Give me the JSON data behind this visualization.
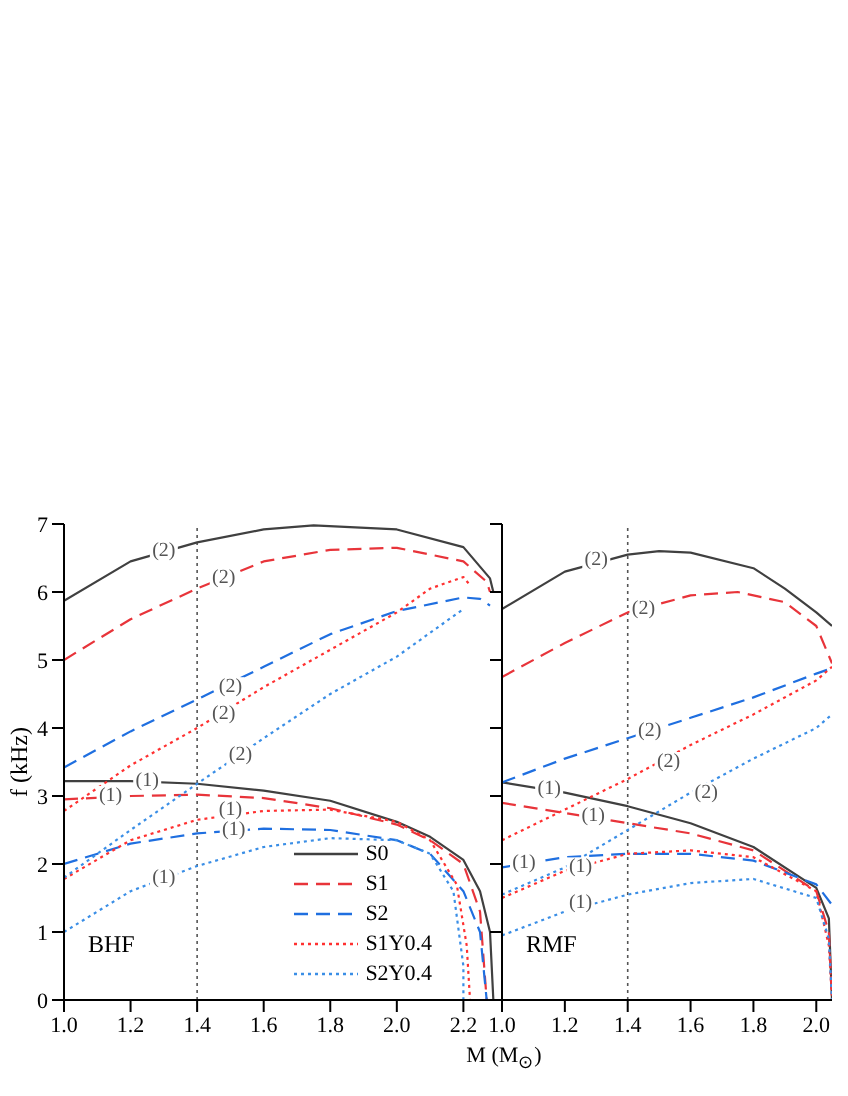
{
  "chart_data": [
    {
      "type": "line",
      "ylabel": "f (kHz)",
      "xlabel": "M (M$_{⊙}$)",
      "xlim": [
        1.0,
        2.31
      ],
      "xticks": [
        {
          "value": 1,
          "label": "1.0"
        },
        {
          "value": 1.2,
          "label": "1.2"
        },
        {
          "value": 1.4,
          "label": "1.4"
        },
        {
          "value": 1.6,
          "label": "1.6"
        },
        {
          "value": 1.8,
          "label": "1.8"
        },
        {
          "value": 2,
          "label": "2.0"
        },
        {
          "value": 2.2,
          "label": "2.2"
        }
      ],
      "ylim": [
        0,
        7
      ],
      "yticks": [
        0,
        1,
        2,
        3,
        4,
        5,
        6,
        7
      ],
      "grid": false,
      "legend": "bottom right",
      "marker": "none",
      "ref_lines": [
        {
          "axis": "x",
          "value": 1.4,
          "line_style": "dotted",
          "color": "#555555"
        }
      ],
      "annotations": [
        "BHF",
        {
          "text": "(2)",
          "x": 1.3,
          "y": 6.6
        },
        {
          "text": "(2)",
          "x": 1.48,
          "y": 6.2
        },
        {
          "text": "(2)",
          "x": 1.5,
          "y": 4.6
        },
        {
          "text": "(2)",
          "x": 1.48,
          "y": 4.2
        },
        {
          "text": "(2)",
          "x": 1.53,
          "y": 3.6
        },
        {
          "text": "(1)",
          "x": 1.25,
          "y": 3.22
        },
        {
          "text": "(1)",
          "x": 1.14,
          "y": 3.0
        },
        {
          "text": "(1)",
          "x": 1.5,
          "y": 2.8
        },
        {
          "text": "(1)",
          "x": 1.51,
          "y": 2.5
        },
        {
          "text": "(1)",
          "x": 1.3,
          "y": 1.8
        }
      ],
      "series": [
        {
          "name": "S0",
          "color": "#404040",
          "line_style": "solid",
          "x": [
            1.0,
            1.2,
            1.4,
            1.6,
            1.8,
            2.0,
            2.1,
            2.2,
            2.25,
            2.28,
            2.29
          ],
          "values": [
            3.22,
            3.22,
            3.18,
            3.08,
            2.93,
            2.62,
            2.4,
            2.06,
            1.6,
            1.0,
            0
          ]
        },
        {
          "name": "S1",
          "color": "#e8343a",
          "line_style": "dashed",
          "x": [
            1.0,
            1.2,
            1.4,
            1.6,
            1.8,
            2.0,
            2.1,
            2.2,
            2.25,
            2.27
          ],
          "values": [
            2.95,
            3.0,
            3.02,
            2.97,
            2.82,
            2.58,
            2.35,
            2.0,
            1.3,
            0
          ]
        },
        {
          "name": "S2",
          "color": "#1f6fe0",
          "line_style": "dashed",
          "x": [
            1.0,
            1.2,
            1.4,
            1.6,
            1.8,
            2.0,
            2.1,
            2.2,
            2.25,
            2.27
          ],
          "values": [
            2.0,
            2.3,
            2.45,
            2.52,
            2.5,
            2.35,
            2.15,
            1.6,
            1.0,
            0
          ]
        },
        {
          "name": "S1Y0.4",
          "color": "#ff3030",
          "line_style": "dotted",
          "x": [
            1.0,
            1.2,
            1.4,
            1.6,
            1.8,
            2.0,
            2.1,
            2.18,
            2.21,
            2.22
          ],
          "values": [
            1.78,
            2.35,
            2.65,
            2.78,
            2.8,
            2.62,
            2.35,
            1.7,
            0.8,
            0
          ]
        },
        {
          "name": "S2Y0.4",
          "color": "#3a8ee6",
          "line_style": "dotted",
          "x": [
            1.0,
            1.2,
            1.4,
            1.6,
            1.8,
            2.0,
            2.1,
            2.17,
            2.2,
            2.2
          ],
          "values": [
            1.0,
            1.6,
            1.97,
            2.25,
            2.38,
            2.35,
            2.15,
            1.6,
            0.5,
            0
          ]
        },
        {
          "color": "#404040",
          "line_style": "solid",
          "x": [
            1.0,
            1.2,
            1.4,
            1.6,
            1.75,
            2.0,
            2.2,
            2.28,
            2.29
          ],
          "values": [
            5.87,
            6.45,
            6.73,
            6.92,
            6.98,
            6.92,
            6.66,
            6.2,
            6.0
          ]
        },
        {
          "color": "#e8343a",
          "line_style": "dashed",
          "x": [
            1.0,
            1.2,
            1.4,
            1.6,
            1.8,
            2.0,
            2.2,
            2.27,
            2.28
          ],
          "values": [
            5.0,
            5.6,
            6.05,
            6.45,
            6.62,
            6.65,
            6.45,
            6.15,
            6.0
          ]
        },
        {
          "color": "#1f6fe0",
          "line_style": "dashed",
          "x": [
            1.0,
            1.2,
            1.4,
            1.6,
            1.8,
            2.0,
            2.2,
            2.25,
            2.28
          ],
          "values": [
            3.42,
            3.95,
            4.42,
            4.9,
            5.38,
            5.72,
            5.92,
            5.9,
            5.8
          ]
        },
        {
          "color": "#ff3030",
          "line_style": "dotted",
          "x": [
            1.0,
            1.2,
            1.4,
            1.6,
            1.8,
            2.0,
            2.1,
            2.2,
            2.22
          ],
          "values": [
            2.78,
            3.45,
            4.0,
            4.6,
            5.15,
            5.7,
            6.05,
            6.22,
            6.1
          ]
        },
        {
          "color": "#3a8ee6",
          "line_style": "dotted",
          "x": [
            1.0,
            1.2,
            1.4,
            1.6,
            1.8,
            2.0,
            2.2
          ],
          "values": [
            1.8,
            2.5,
            3.18,
            3.85,
            4.5,
            5.05,
            5.75
          ]
        }
      ]
    },
    {
      "type": "line",
      "xlim": [
        1.0,
        2.05
      ],
      "xticks": [
        {
          "value": 1,
          "label": "1.0"
        },
        {
          "value": 1.2,
          "label": "1.2"
        },
        {
          "value": 1.4,
          "label": "1.4"
        },
        {
          "value": 1.6,
          "label": "1.6"
        },
        {
          "value": 1.8,
          "label": "1.8"
        },
        {
          "value": 2,
          "label": "2.0"
        }
      ],
      "ylim": [
        0,
        7
      ],
      "yticks": [
        0,
        1,
        2,
        3,
        4,
        5,
        6,
        7
      ],
      "tick_labels": "x",
      "grid": false,
      "marker": "none",
      "ref_lines": [
        {
          "axis": "x",
          "value": 1.4,
          "line_style": "dotted",
          "color": "#555555"
        }
      ],
      "annotations": [
        "RMF",
        {
          "text": "(2)",
          "x": 1.3,
          "y": 6.47
        },
        {
          "text": "(2)",
          "x": 1.45,
          "y": 5.75
        },
        {
          "text": "(2)",
          "x": 1.47,
          "y": 3.95
        },
        {
          "text": "(2)",
          "x": 1.53,
          "y": 3.5
        },
        {
          "text": "(2)",
          "x": 1.65,
          "y": 3.05
        },
        {
          "text": "(1)",
          "x": 1.15,
          "y": 3.1
        },
        {
          "text": "(1)",
          "x": 1.29,
          "y": 2.7
        },
        {
          "text": "(1)",
          "x": 1.07,
          "y": 2.02
        },
        {
          "text": "(1)",
          "x": 1.25,
          "y": 1.95
        },
        {
          "text": "(1)",
          "x": 1.25,
          "y": 1.43
        }
      ],
      "series": [
        {
          "color": "#404040",
          "line_style": "solid",
          "x": [
            1.0,
            1.2,
            1.4,
            1.6,
            1.8,
            2.0,
            2.04,
            2.05
          ],
          "values": [
            3.2,
            3.05,
            2.85,
            2.6,
            2.25,
            1.65,
            1.2,
            0
          ]
        },
        {
          "color": "#e8343a",
          "line_style": "dashed",
          "x": [
            1.0,
            1.2,
            1.4,
            1.6,
            1.8,
            2.0,
            2.04,
            2.05
          ],
          "values": [
            2.9,
            2.75,
            2.6,
            2.45,
            2.2,
            1.6,
            1.0,
            0
          ]
        },
        {
          "color": "#1f6fe0",
          "line_style": "dashed",
          "x": [
            1.0,
            1.2,
            1.4,
            1.6,
            1.8,
            2.0,
            2.05
          ],
          "values": [
            1.95,
            2.1,
            2.15,
            2.15,
            2.05,
            1.7,
            1.4
          ]
        },
        {
          "color": "#ff3030",
          "line_style": "dotted",
          "x": [
            1.0,
            1.2,
            1.4,
            1.6,
            1.8,
            2.0,
            2.04,
            2.05
          ],
          "values": [
            1.5,
            1.9,
            2.15,
            2.2,
            2.1,
            1.6,
            0.8,
            0
          ]
        },
        {
          "color": "#3a8ee6",
          "line_style": "dotted",
          "x": [
            1.0,
            1.2,
            1.4,
            1.6,
            1.8,
            2.0,
            2.04,
            2.05
          ],
          "values": [
            0.95,
            1.3,
            1.55,
            1.72,
            1.78,
            1.5,
            0.9,
            0
          ]
        },
        {
          "color": "#404040",
          "line_style": "solid",
          "x": [
            1.0,
            1.2,
            1.4,
            1.5,
            1.6,
            1.8,
            1.9,
            2.0,
            2.05
          ],
          "values": [
            5.75,
            6.3,
            6.55,
            6.6,
            6.58,
            6.35,
            6.05,
            5.7,
            5.5
          ]
        },
        {
          "color": "#e8343a",
          "line_style": "dashed",
          "x": [
            1.0,
            1.2,
            1.4,
            1.6,
            1.75,
            1.9,
            2.0,
            2.05
          ],
          "values": [
            4.75,
            5.25,
            5.7,
            5.95,
            6.0,
            5.85,
            5.5,
            4.95
          ]
        },
        {
          "color": "#1f6fe0",
          "line_style": "dashed",
          "x": [
            1.0,
            1.2,
            1.4,
            1.6,
            1.8,
            2.0,
            2.05
          ],
          "values": [
            3.2,
            3.55,
            3.85,
            4.15,
            4.45,
            4.8,
            4.88
          ]
        },
        {
          "color": "#ff3030",
          "line_style": "dotted",
          "x": [
            1.0,
            1.2,
            1.4,
            1.6,
            1.8,
            2.0,
            2.05
          ],
          "values": [
            2.35,
            2.8,
            3.25,
            3.75,
            4.2,
            4.7,
            4.9
          ]
        },
        {
          "color": "#3a8ee6",
          "line_style": "dotted",
          "x": [
            1.0,
            1.2,
            1.4,
            1.6,
            1.8,
            2.0,
            2.05
          ],
          "values": [
            1.55,
            1.95,
            2.5,
            3.05,
            3.55,
            4.0,
            4.2
          ]
        }
      ]
    }
  ]
}
